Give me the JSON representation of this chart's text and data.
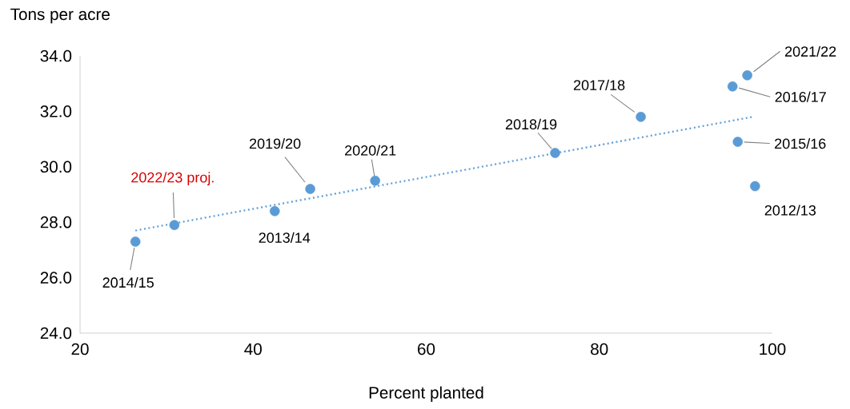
{
  "chart_data": {
    "type": "scatter",
    "xlabel": "Percent planted",
    "ylabel": "Tons per acre",
    "xlim": [
      20,
      100
    ],
    "xticks": [
      20,
      40,
      60,
      80,
      100
    ],
    "ylim": [
      24,
      34
    ],
    "yticks": [
      {
        "value": 24,
        "label": "24.0"
      },
      {
        "value": 26,
        "label": "26.0"
      },
      {
        "value": 28,
        "label": "28.0"
      },
      {
        "value": 30,
        "label": "30.0"
      },
      {
        "value": 32,
        "label": "32.0"
      },
      {
        "value": 34,
        "label": "34.0"
      }
    ],
    "grid": false,
    "series": [
      {
        "color": "#5b9bd5",
        "marker": "circle",
        "x": [
          26.4,
          30.9,
          42.5,
          46.6,
          54.1,
          74.9,
          84.8,
          95.4,
          97.1,
          96.0,
          98.0
        ],
        "values": [
          27.3,
          27.9,
          28.4,
          29.2,
          29.5,
          30.5,
          31.8,
          32.9,
          33.3,
          30.9,
          29.3
        ]
      },
      {
        "type": "line",
        "color": "#5b9bd5",
        "line_style": "dotted",
        "marker": "none",
        "x": [
          26.4,
          97.7
        ],
        "values": [
          27.7,
          31.8
        ]
      }
    ],
    "annotations": [
      {
        "text": "2014/15",
        "x": 26.4,
        "y": 27.3
      },
      {
        "text": "2022/23  proj.",
        "x": 30.9,
        "y": 27.9
      },
      {
        "text": "2013/14",
        "x": 42.5,
        "y": 28.4
      },
      {
        "text": "2019/20",
        "x": 46.6,
        "y": 29.2
      },
      {
        "text": "2020/21",
        "x": 54.1,
        "y": 29.5
      },
      {
        "text": "2018/19",
        "x": 74.9,
        "y": 30.5
      },
      {
        "text": "2017/18",
        "x": 84.8,
        "y": 31.8
      },
      {
        "text": "2016/17",
        "x": 95.4,
        "y": 32.9
      },
      {
        "text": "2021/22",
        "x": 97.1,
        "y": 33.3
      },
      {
        "text": "2015/16",
        "x": 96.0,
        "y": 30.9
      },
      {
        "text": "2012/13",
        "x": 98.0,
        "y": 29.3
      }
    ]
  }
}
